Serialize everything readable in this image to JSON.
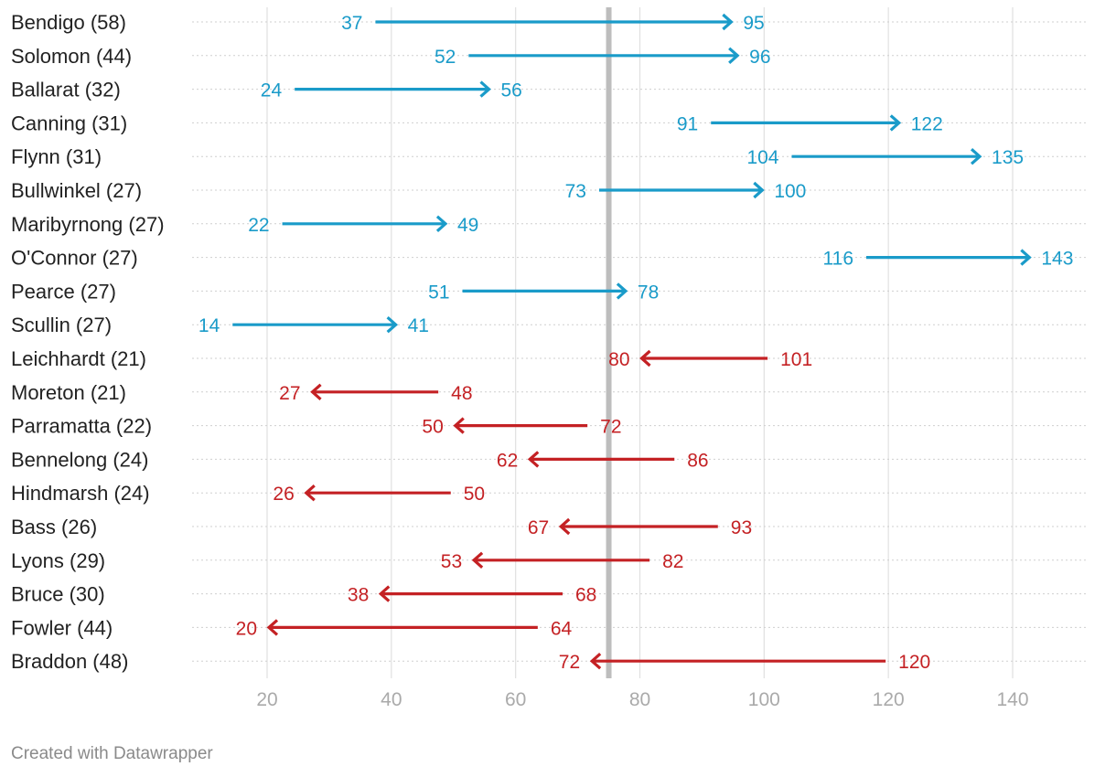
{
  "colors": {
    "increase": "#1a9bc9",
    "decrease": "#c42124",
    "reference": "#bdbdbd",
    "grid": "#e0e0e0",
    "tick": "#aaaaaa"
  },
  "footer": {
    "credit": "Created with Datawrapper"
  },
  "chart_data": {
    "type": "arrow",
    "title": "",
    "xlim": [
      8,
      152
    ],
    "xticks": [
      20,
      40,
      60,
      80,
      100,
      120,
      140
    ],
    "reference_line": 75,
    "rows": [
      {
        "label": "Bendigo (58)",
        "from": 37,
        "to": 95,
        "group": "increase"
      },
      {
        "label": "Solomon (44)",
        "from": 52,
        "to": 96,
        "group": "increase"
      },
      {
        "label": "Ballarat (32)",
        "from": 24,
        "to": 56,
        "group": "increase"
      },
      {
        "label": "Canning (31)",
        "from": 91,
        "to": 122,
        "group": "increase"
      },
      {
        "label": "Flynn (31)",
        "from": 104,
        "to": 135,
        "group": "increase"
      },
      {
        "label": "Bullwinkel (27)",
        "from": 73,
        "to": 100,
        "group": "increase"
      },
      {
        "label": "Maribyrnong (27)",
        "from": 22,
        "to": 49,
        "group": "increase"
      },
      {
        "label": "O'Connor (27)",
        "from": 116,
        "to": 143,
        "group": "increase"
      },
      {
        "label": "Pearce (27)",
        "from": 51,
        "to": 78,
        "group": "increase"
      },
      {
        "label": "Scullin (27)",
        "from": 14,
        "to": 41,
        "group": "increase"
      },
      {
        "label": "Leichhardt (21)",
        "from": 101,
        "to": 80,
        "group": "decrease"
      },
      {
        "label": "Moreton (21)",
        "from": 48,
        "to": 27,
        "group": "decrease"
      },
      {
        "label": "Parramatta (22)",
        "from": 72,
        "to": 50,
        "group": "decrease"
      },
      {
        "label": "Bennelong (24)",
        "from": 86,
        "to": 62,
        "group": "decrease"
      },
      {
        "label": "Hindmarsh (24)",
        "from": 50,
        "to": 26,
        "group": "decrease"
      },
      {
        "label": "Bass (26)",
        "from": 93,
        "to": 67,
        "group": "decrease"
      },
      {
        "label": "Lyons (29)",
        "from": 82,
        "to": 53,
        "group": "decrease"
      },
      {
        "label": "Bruce (30)",
        "from": 68,
        "to": 38,
        "group": "decrease"
      },
      {
        "label": "Fowler (44)",
        "from": 64,
        "to": 20,
        "group": "decrease"
      },
      {
        "label": "Braddon (48)",
        "from": 120,
        "to": 72,
        "group": "decrease"
      }
    ]
  }
}
